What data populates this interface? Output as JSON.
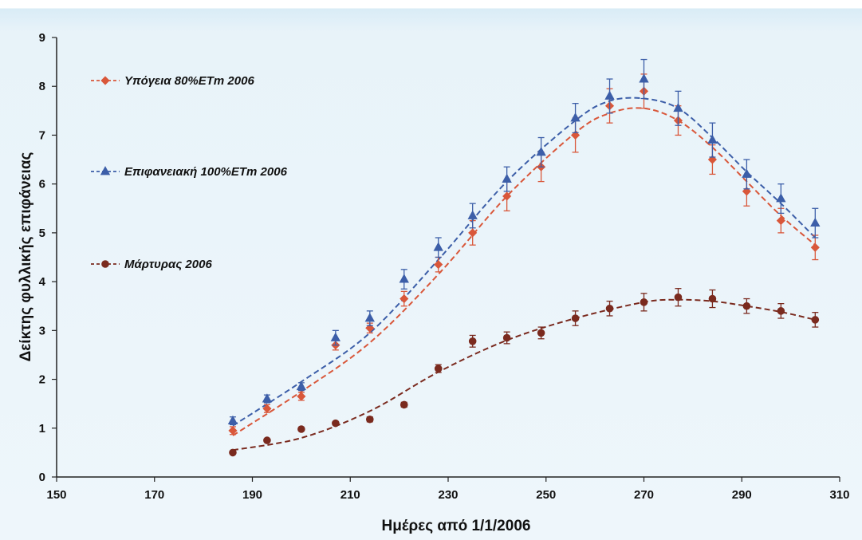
{
  "chart_data": {
    "type": "scatter",
    "xlabel": "Ημέρες από 1/1/2006",
    "ylabel": "Δείκτης φυλλικής επιφάνειας",
    "xlim": [
      150,
      310
    ],
    "ylim": [
      0,
      9
    ],
    "x_ticks": [
      150,
      170,
      190,
      210,
      230,
      250,
      270,
      290,
      310
    ],
    "y_ticks": [
      0,
      1,
      2,
      3,
      4,
      5,
      6,
      7,
      8,
      9
    ],
    "grid": false,
    "legend_position": "left",
    "series": [
      {
        "name": "Υπόγεια 80%ETm 2006",
        "color": "#d9573a",
        "marker": "diamond",
        "x": [
          186,
          193,
          200,
          207,
          214,
          221,
          228,
          235,
          242,
          249,
          256,
          263,
          270,
          277,
          284,
          291,
          298,
          305
        ],
        "y": [
          0.95,
          1.4,
          1.65,
          2.7,
          3.05,
          3.65,
          4.35,
          5.0,
          5.75,
          6.35,
          7.0,
          7.6,
          7.9,
          7.3,
          6.5,
          5.85,
          5.25,
          4.7
        ],
        "err": [
          0.08,
          0.08,
          0.08,
          0.1,
          0.1,
          0.15,
          0.15,
          0.25,
          0.3,
          0.3,
          0.35,
          0.35,
          0.35,
          0.3,
          0.3,
          0.3,
          0.25,
          0.25
        ],
        "fit_x": [
          186,
          200,
          214,
          228,
          242,
          256,
          263,
          270,
          277,
          284,
          291,
          298,
          305
        ],
        "fit_y": [
          0.85,
          1.75,
          2.75,
          4.15,
          5.75,
          7.05,
          7.45,
          7.55,
          7.3,
          6.75,
          6.05,
          5.35,
          4.75
        ]
      },
      {
        "name": "Επιφανειακή 100%ETm 2006",
        "color": "#3c5ea8",
        "marker": "triangle",
        "x": [
          186,
          193,
          200,
          207,
          214,
          221,
          228,
          235,
          242,
          249,
          256,
          263,
          270,
          277,
          284,
          291,
          298,
          305
        ],
        "y": [
          1.15,
          1.6,
          1.85,
          2.85,
          3.25,
          4.05,
          4.7,
          5.35,
          6.1,
          6.65,
          7.35,
          7.8,
          8.15,
          7.55,
          6.9,
          6.2,
          5.7,
          5.2
        ],
        "err": [
          0.08,
          0.08,
          0.08,
          0.15,
          0.15,
          0.2,
          0.2,
          0.25,
          0.25,
          0.3,
          0.3,
          0.35,
          0.4,
          0.35,
          0.35,
          0.3,
          0.3,
          0.3
        ],
        "fit_x": [
          186,
          200,
          214,
          228,
          242,
          256,
          263,
          270,
          277,
          284,
          291,
          298,
          305
        ],
        "fit_y": [
          1.05,
          1.95,
          2.95,
          4.45,
          6.05,
          7.3,
          7.7,
          7.75,
          7.55,
          6.95,
          6.25,
          5.6,
          4.9
        ]
      },
      {
        "name": "Μάρτυρας 2006",
        "color": "#7a2a1e",
        "marker": "circle",
        "x": [
          186,
          193,
          200,
          207,
          214,
          221,
          228,
          235,
          242,
          249,
          256,
          263,
          270,
          277,
          284,
          291,
          298,
          305
        ],
        "y": [
          0.5,
          0.75,
          0.98,
          1.1,
          1.18,
          1.48,
          2.22,
          2.78,
          2.85,
          2.95,
          3.25,
          3.45,
          3.58,
          3.68,
          3.65,
          3.5,
          3.4,
          3.22
        ],
        "err": [
          0.03,
          0.03,
          0.03,
          0.03,
          0.05,
          0.05,
          0.08,
          0.12,
          0.12,
          0.12,
          0.15,
          0.15,
          0.18,
          0.18,
          0.18,
          0.15,
          0.15,
          0.15
        ],
        "fit_x": [
          186,
          200,
          214,
          228,
          242,
          256,
          270,
          277,
          284,
          291,
          298,
          305
        ],
        "fit_y": [
          0.55,
          0.8,
          1.35,
          2.15,
          2.8,
          3.25,
          3.58,
          3.63,
          3.6,
          3.5,
          3.38,
          3.22
        ]
      }
    ]
  }
}
